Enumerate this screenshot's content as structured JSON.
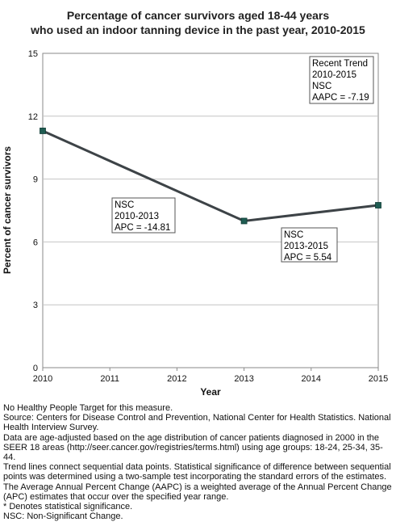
{
  "chart_data": {
    "type": "line",
    "title_lines": [
      "Percentage of cancer survivors aged 18-44 years",
      "who used an indoor tanning device in the past year, 2010-2015"
    ],
    "xlabel": "Year",
    "ylabel": "Percent of cancer survivors",
    "x_ticks": [
      "2010",
      "2011",
      "2012",
      "2013",
      "2014",
      "2015"
    ],
    "y_ticks": [
      "0",
      "3",
      "6",
      "9",
      "12",
      "15"
    ],
    "xlim": [
      2010,
      2015
    ],
    "ylim": [
      0,
      15
    ],
    "grid": true,
    "series": [
      {
        "color": "#3d4347",
        "marker_color": "#1f5c52",
        "x": [
          2010,
          2013,
          2015
        ],
        "y": [
          11.3,
          7.0,
          7.75
        ]
      }
    ],
    "annotations": [
      {
        "lines": [
          "NSC",
          "2010-2013",
          "APC = -14.81"
        ]
      },
      {
        "lines": [
          "NSC",
          "2013-2015",
          "APC =  5.54"
        ]
      },
      {
        "lines": [
          "Recent Trend",
          "2010-2015",
          "NSC",
          "AAPC = -7.19"
        ]
      }
    ]
  },
  "notes": [
    "No Healthy People Target for this measure.",
    "Source: Centers for Disease Control and Prevention, National Center for Health Statistics. National Health Interview Survey.",
    "Data are age-adjusted based on the age distribution of cancer patients diagnosed in 2000 in the SEER 18 areas (http://seer.cancer.gov/registries/terms.html) using age groups: 18-24, 25-34, 35-44.",
    "Trend lines connect sequential data points. Statistical significance of difference between sequential points was determined using a two-sample test incorporating the standard errors of the estimates.",
    "The Average Annual Percent Change (AAPC) is a weighted average of the Annual Percent Change (APC) estimates that occur over the specified year range.",
    "* Denotes statistical significance.",
    "NSC: Non-Significant Change."
  ]
}
